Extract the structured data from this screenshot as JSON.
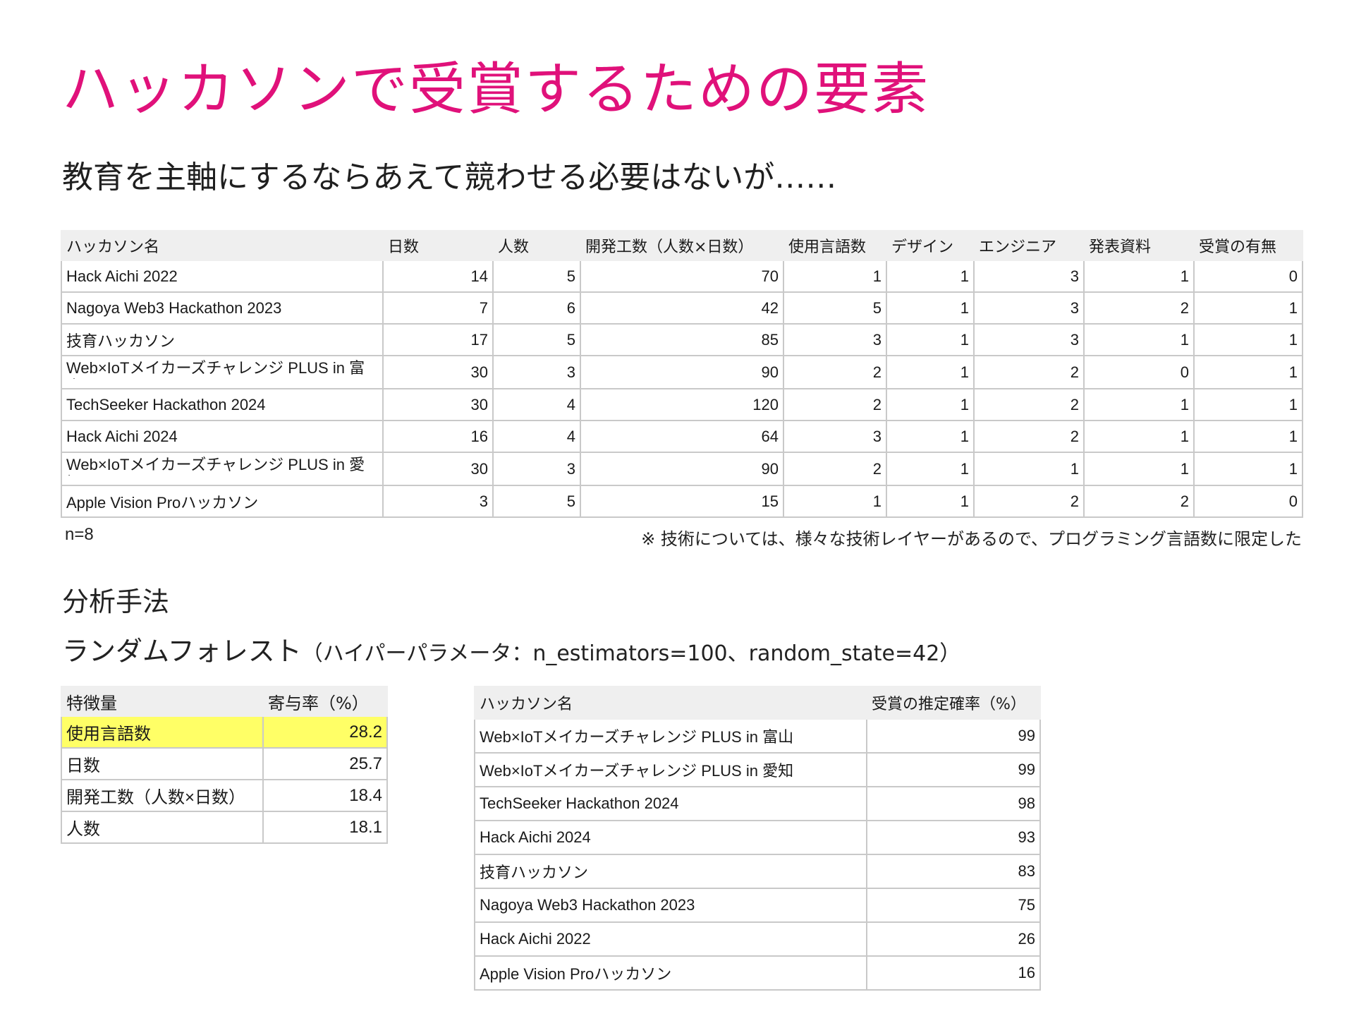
{
  "title": "ハッカソンで受賞するための要素",
  "subtitle": "教育を主軸にするならあえて競わせる必要はないが……",
  "main_table": {
    "headers": [
      "ハッカソン名",
      "日数",
      "人数",
      "開発工数（人数×日数）",
      "使用言語数",
      "デザイン",
      "エンジニア",
      "発表資料",
      "受賞の有無"
    ],
    "rows": [
      [
        "Hack Aichi 2022",
        "14",
        "5",
        "70",
        "1",
        "1",
        "3",
        "1",
        "0"
      ],
      [
        "Nagoya Web3 Hackathon 2023",
        "7",
        "6",
        "42",
        "5",
        "1",
        "3",
        "2",
        "1"
      ],
      [
        "技育ハッカソン",
        "17",
        "5",
        "85",
        "3",
        "1",
        "3",
        "1",
        "1"
      ],
      [
        "Web×IoTメイカーズチャレンジ PLUS in 富山",
        "30",
        "3",
        "90",
        "2",
        "1",
        "2",
        "0",
        "1"
      ],
      [
        "TechSeeker Hackathon 2024",
        "30",
        "4",
        "120",
        "2",
        "1",
        "2",
        "1",
        "1"
      ],
      [
        "Hack Aichi 2024",
        "16",
        "4",
        "64",
        "3",
        "1",
        "2",
        "1",
        "1"
      ],
      [
        "Web×IoTメイカーズチャレンジ PLUS in 愛知",
        "30",
        "3",
        "90",
        "2",
        "1",
        "1",
        "1",
        "1"
      ],
      [
        "Apple Vision Proハッカソン",
        "3",
        "5",
        "15",
        "1",
        "1",
        "2",
        "2",
        "0"
      ]
    ]
  },
  "n_label": "n=8",
  "note": "※ 技術については、様々な技術レイヤーがあるので、プログラミング言語数に限定した",
  "method_heading": "分析手法",
  "method_name": "ランダムフォレスト",
  "method_params": "（ハイパーパラメータ：n_estimators=100、random_state=42）",
  "feature_table": {
    "headers": [
      "特徴量",
      "寄与率（%）"
    ],
    "rows": [
      [
        "使用言語数",
        "28.2"
      ],
      [
        "日数",
        "25.7"
      ],
      [
        "開発工数（人数×日数）",
        "18.4"
      ],
      [
        "人数",
        "18.1"
      ]
    ],
    "highlight_color": "#ffff66"
  },
  "probability_table": {
    "headers": [
      "ハッカソン名",
      "受賞の推定確率（%）"
    ],
    "rows": [
      [
        "Web×IoTメイカーズチャレンジ PLUS in 富山",
        "99"
      ],
      [
        "Web×IoTメイカーズチャレンジ PLUS in 愛知",
        "99"
      ],
      [
        "TechSeeker Hackathon 2024",
        "98"
      ],
      [
        "Hack Aichi 2024",
        "93"
      ],
      [
        "技育ハッカソン",
        "83"
      ],
      [
        "Nagoya Web3 Hackathon 2023",
        "75"
      ],
      [
        "Hack Aichi 2022",
        "26"
      ],
      [
        "Apple Vision Proハッカソン",
        "16"
      ]
    ]
  },
  "colors": {
    "title": "#e0117a",
    "header_bg": "#efefef",
    "grid": "#c9c9c9"
  }
}
